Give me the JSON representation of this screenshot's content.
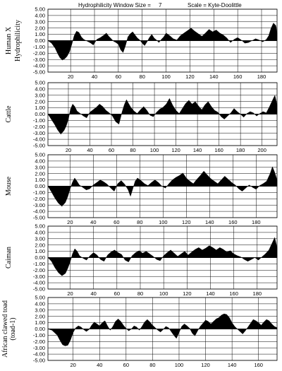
{
  "header": {
    "window_label": "Hydrophilicity Window Size =",
    "window_value": "7",
    "scale_label": "Scale = Kyte-Doolittle"
  },
  "chart_data": [
    {
      "type": "area",
      "species": "Human X",
      "ylabel": "Hydrophilicity",
      "ylim": [
        -5,
        5
      ],
      "y_ticks": [
        "5.00",
        "4.00",
        "3.00",
        "2.00",
        "1.00",
        "0.00",
        "-1.00",
        "-2.00",
        "-3.00",
        "-4.00",
        "-5.00"
      ],
      "xlim": [
        1,
        193
      ],
      "x_ticks": [
        20,
        40,
        60,
        80,
        100,
        120,
        140,
        160,
        180
      ],
      "x": [
        1,
        4,
        7,
        9,
        11,
        13,
        15,
        17,
        19,
        21,
        23,
        25,
        27,
        29,
        31,
        33,
        35,
        37,
        39,
        42,
        45,
        48,
        50,
        52,
        54,
        56,
        58,
        60,
        62,
        64,
        66,
        68,
        70,
        72,
        74,
        76,
        78,
        80,
        82,
        84,
        86,
        88,
        90,
        92,
        94,
        96,
        98,
        100,
        103,
        106,
        109,
        112,
        115,
        118,
        121,
        124,
        127,
        130,
        133,
        136,
        139,
        142,
        145,
        148,
        151,
        154,
        157,
        160,
        163,
        166,
        169,
        172,
        175,
        178,
        181,
        184,
        186,
        188,
        190,
        192,
        193
      ],
      "y": [
        0.0,
        -0.4,
        -1.2,
        -2.0,
        -2.7,
        -3.1,
        -2.9,
        -2.5,
        -1.8,
        -0.6,
        0.8,
        1.5,
        1.3,
        0.6,
        0.2,
        0.0,
        -0.2,
        -0.4,
        -0.7,
        0.2,
        0.5,
        0.9,
        1.2,
        0.7,
        0.3,
        -0.1,
        -0.3,
        -0.6,
        -1.5,
        -1.9,
        -0.8,
        0.6,
        1.1,
        1.4,
        0.9,
        0.4,
        0.1,
        -0.4,
        -0.8,
        -0.2,
        0.5,
        1.0,
        0.4,
        0.1,
        -0.3,
        0.2,
        0.6,
        1.2,
        0.8,
        0.3,
        0.1,
        0.8,
        1.2,
        1.6,
        2.0,
        1.5,
        1.1,
        0.7,
        1.2,
        1.8,
        1.4,
        1.7,
        1.2,
        0.9,
        0.4,
        -0.3,
        0.2,
        0.5,
        0.1,
        -0.4,
        -0.3,
        0.0,
        0.3,
        0.1,
        -0.2,
        0.2,
        0.8,
        2.0,
        2.8,
        2.4,
        1.2
      ]
    },
    {
      "type": "area",
      "species": "Cattle",
      "ylabel": "",
      "ylim": [
        -5,
        5
      ],
      "y_ticks": [
        "5.00",
        "4.00",
        "3.00",
        "2.00",
        "1.00",
        "0.00",
        "-1.00",
        "-2.00",
        "-3.00",
        "-4.00",
        "-5.00"
      ],
      "xlim": [
        1,
        214
      ],
      "x_ticks": [
        20,
        40,
        60,
        80,
        100,
        120,
        140,
        160,
        180,
        200
      ],
      "x": [
        1,
        4,
        7,
        10,
        13,
        16,
        18,
        20,
        22,
        24,
        26,
        28,
        31,
        34,
        37,
        40,
        43,
        46,
        49,
        52,
        55,
        58,
        61,
        64,
        67,
        70,
        72,
        74,
        76,
        78,
        81,
        84,
        87,
        90,
        93,
        96,
        99,
        102,
        105,
        108,
        111,
        114,
        117,
        120,
        123,
        126,
        129,
        132,
        135,
        138,
        141,
        144,
        147,
        150,
        153,
        156,
        159,
        162,
        165,
        168,
        171,
        174,
        177,
        180,
        183,
        186,
        189,
        192,
        195,
        198,
        201,
        204,
        207,
        210,
        212,
        214
      ],
      "y": [
        0.0,
        -0.8,
        -1.6,
        -2.5,
        -3.2,
        -2.6,
        -1.9,
        -0.8,
        0.8,
        1.6,
        1.2,
        0.5,
        0.1,
        -0.3,
        -0.6,
        0.3,
        0.7,
        1.1,
        1.6,
        1.2,
        0.6,
        0.2,
        -0.3,
        -1.2,
        -1.6,
        0.4,
        1.5,
        2.3,
        1.7,
        1.1,
        0.5,
        0.1,
        0.7,
        1.2,
        0.6,
        -0.2,
        -0.4,
        0.3,
        0.8,
        1.1,
        1.6,
        2.5,
        1.4,
        0.6,
        0.1,
        0.9,
        1.7,
        2.2,
        1.6,
        2.0,
        1.3,
        0.7,
        1.5,
        2.0,
        1.2,
        0.6,
        0.3,
        -0.4,
        -0.8,
        -0.3,
        0.2,
        0.9,
        0.4,
        0.0,
        -0.5,
        0.1,
        0.4,
        0.2,
        -0.3,
        0.1,
        0.4,
        0.2,
        1.2,
        2.3,
        3.0,
        1.5
      ]
    },
    {
      "type": "area",
      "species": "Mouse",
      "ylabel": "",
      "ylim": [
        -5,
        5
      ],
      "y_ticks": [
        "5.00",
        "4.00",
        "3.00",
        "2.00",
        "1.00",
        "0.00",
        "-1.00",
        "-2.00",
        "-3.00",
        "-4.00",
        "-5.00"
      ],
      "xlim": [
        1,
        198
      ],
      "x_ticks": [
        20,
        40,
        60,
        80,
        100,
        120,
        140,
        160,
        180
      ],
      "x": [
        1,
        4,
        7,
        10,
        13,
        16,
        18,
        20,
        22,
        24,
        26,
        28,
        31,
        34,
        37,
        40,
        43,
        46,
        49,
        52,
        55,
        58,
        61,
        64,
        67,
        70,
        72,
        74,
        76,
        78,
        81,
        84,
        87,
        90,
        93,
        96,
        99,
        102,
        105,
        108,
        111,
        114,
        117,
        120,
        123,
        126,
        129,
        132,
        135,
        138,
        141,
        144,
        147,
        150,
        153,
        156,
        159,
        162,
        165,
        168,
        171,
        174,
        177,
        180,
        183,
        186,
        189,
        192,
        194,
        196,
        198
      ],
      "y": [
        0.0,
        -0.9,
        -1.9,
        -2.7,
        -3.2,
        -2.6,
        -1.7,
        -0.5,
        0.6,
        1.3,
        0.8,
        0.2,
        -0.2,
        -0.6,
        -0.4,
        0.2,
        0.6,
        1.0,
        0.7,
        0.3,
        -0.3,
        -0.8,
        0.4,
        0.9,
        0.3,
        -0.6,
        -1.6,
        -0.4,
        0.8,
        1.3,
        0.9,
        0.4,
        0.1,
        0.6,
        1.0,
        0.6,
        0.0,
        -0.3,
        0.4,
        1.0,
        1.4,
        1.7,
        2.1,
        1.3,
        0.8,
        0.4,
        1.1,
        1.7,
        2.4,
        1.8,
        1.2,
        0.8,
        0.4,
        1.0,
        1.6,
        1.1,
        0.6,
        0.2,
        -0.4,
        -0.8,
        -0.3,
        0.2,
        -0.2,
        -0.5,
        0.1,
        0.4,
        0.8,
        2.0,
        3.1,
        2.2,
        1.0
      ]
    },
    {
      "type": "area",
      "species": "Caiman",
      "ylabel": "",
      "ylim": [
        -5,
        5
      ],
      "y_ticks": [
        "5.00",
        "4.00",
        "3.00",
        "2.00",
        "1.00",
        "0.00",
        "-1.00",
        "-2.00",
        "-3.00",
        "-4.00",
        "-5.00"
      ],
      "xlim": [
        1,
        197
      ],
      "x_ticks": [
        20,
        40,
        60,
        80,
        100,
        120,
        140,
        160,
        180
      ],
      "x": [
        1,
        4,
        7,
        10,
        13,
        16,
        18,
        20,
        22,
        24,
        26,
        28,
        31,
        34,
        37,
        40,
        43,
        46,
        49,
        52,
        55,
        58,
        61,
        64,
        67,
        70,
        73,
        76,
        79,
        82,
        85,
        88,
        91,
        94,
        97,
        100,
        103,
        106,
        109,
        112,
        115,
        118,
        121,
        124,
        127,
        130,
        133,
        136,
        139,
        142,
        145,
        148,
        151,
        154,
        157,
        160,
        163,
        166,
        169,
        172,
        175,
        178,
        181,
        184,
        187,
        190,
        193,
        195,
        197
      ],
      "y": [
        0.0,
        -0.6,
        -1.6,
        -2.4,
        -2.9,
        -2.5,
        -1.7,
        -0.7,
        0.6,
        1.4,
        1.0,
        0.3,
        -0.1,
        -0.4,
        0.3,
        0.8,
        0.4,
        -0.3,
        -0.6,
        0.4,
        0.9,
        1.2,
        0.8,
        0.5,
        -0.4,
        -0.7,
        0.3,
        0.8,
        1.1,
        0.7,
        1.0,
        0.6,
        0.2,
        -0.3,
        -0.5,
        0.3,
        0.8,
        1.2,
        0.7,
        0.2,
        0.6,
        1.0,
        0.4,
        0.9,
        1.3,
        1.6,
        1.2,
        1.5,
        1.9,
        1.6,
        1.2,
        1.6,
        1.3,
        0.9,
        1.1,
        0.6,
        0.3,
        0.1,
        -0.3,
        -0.6,
        -0.3,
        0.0,
        -0.4,
        0.1,
        0.6,
        1.2,
        2.4,
        3.2,
        1.6
      ]
    },
    {
      "type": "area",
      "species": "African clawed toad (toad-1)",
      "ylabel": "",
      "ylim": [
        -5,
        5
      ],
      "y_ticks": [
        "5.00",
        "4.00",
        "3.00",
        "2.00",
        "1.00",
        "0.00",
        "-1.00",
        "-2.00",
        "-3.00",
        "-4.00",
        "-5.00"
      ],
      "xlim": [
        1,
        174
      ],
      "x_ticks": [
        20,
        40,
        60,
        80,
        100,
        120,
        140,
        160
      ],
      "x": [
        1,
        4,
        6,
        8,
        10,
        12,
        14,
        16,
        18,
        20,
        22,
        24,
        26,
        28,
        30,
        32,
        34,
        36,
        38,
        40,
        42,
        44,
        46,
        48,
        50,
        52,
        54,
        56,
        58,
        60,
        62,
        64,
        66,
        68,
        70,
        72,
        74,
        76,
        78,
        80,
        82,
        84,
        86,
        88,
        90,
        92,
        94,
        96,
        98,
        100,
        102,
        104,
        106,
        108,
        110,
        112,
        114,
        116,
        118,
        120,
        122,
        124,
        126,
        128,
        130,
        132,
        134,
        136,
        138,
        140,
        142,
        144,
        146,
        148,
        150,
        152,
        154,
        156,
        158,
        160,
        162,
        164,
        166,
        168,
        170,
        172,
        174
      ],
      "y": [
        0.0,
        -0.2,
        -0.6,
        -1.0,
        -1.8,
        -2.5,
        -2.7,
        -2.6,
        -1.8,
        -0.6,
        0.2,
        0.5,
        0.3,
        -0.1,
        -0.4,
        -0.1,
        0.6,
        1.1,
        0.8,
        0.5,
        1.0,
        1.3,
        0.5,
        -0.2,
        0.4,
        1.2,
        1.6,
        1.2,
        0.6,
        0.1,
        -0.3,
        0.0,
        0.5,
        0.3,
        -0.2,
        0.4,
        1.1,
        1.5,
        1.1,
        0.6,
        0.2,
        -0.2,
        -0.5,
        -0.1,
        0.4,
        0.2,
        -0.4,
        -1.0,
        -1.5,
        -0.6,
        0.4,
        0.8,
        0.5,
        0.1,
        -0.7,
        -1.1,
        -0.3,
        0.4,
        0.9,
        1.4,
        1.2,
        0.8,
        1.2,
        1.6,
        1.8,
        2.2,
        2.4,
        2.3,
        1.8,
        1.0,
        0.4,
        0.0,
        -0.4,
        -0.8,
        -0.3,
        0.3,
        0.9,
        1.5,
        1.3,
        1.0,
        0.6,
        1.1,
        1.5,
        1.3,
        0.8,
        0.4,
        0.2
      ]
    }
  ]
}
